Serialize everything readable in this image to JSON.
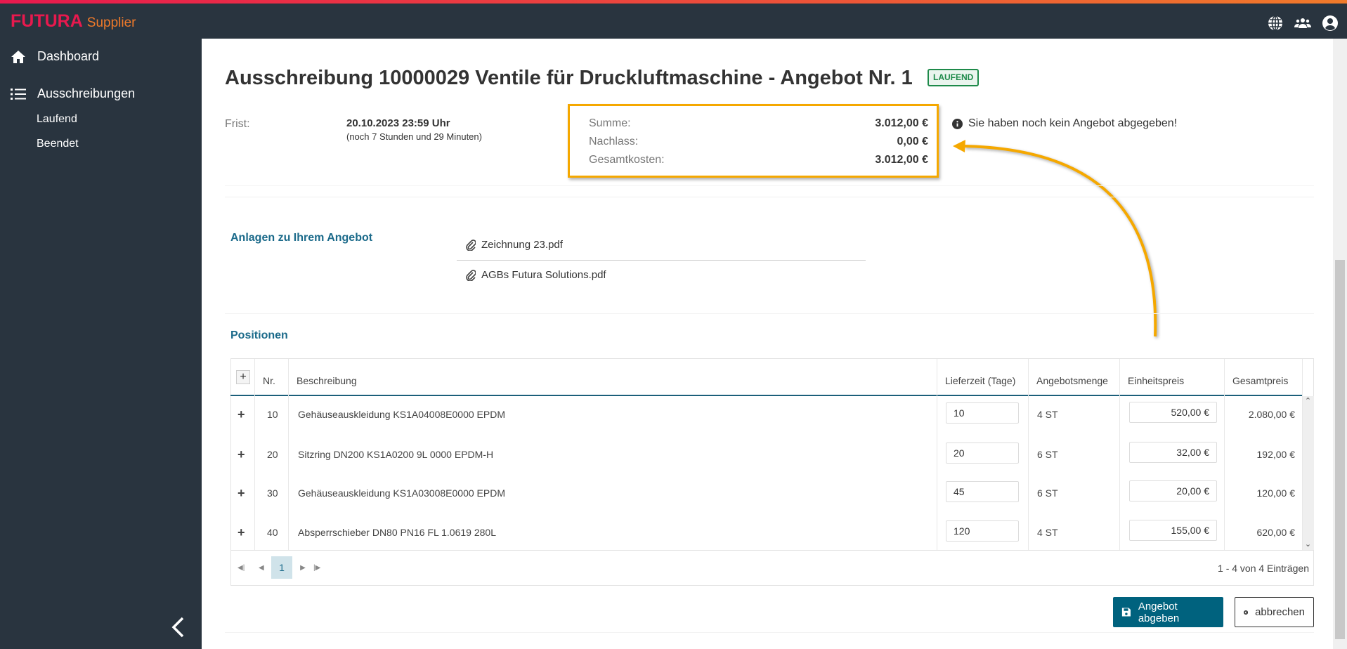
{
  "app": {
    "brand": "FUTURA",
    "product": "Supplier"
  },
  "header": {
    "icons": [
      "globe-icon",
      "users-icon",
      "account-icon"
    ]
  },
  "sidebar": {
    "items": [
      {
        "label": "Dashboard",
        "icon": "home-icon"
      },
      {
        "label": "Ausschreibungen",
        "icon": "list-icon",
        "children": [
          {
            "label": "Laufend"
          },
          {
            "label": "Beendet"
          }
        ]
      }
    ],
    "collapse_icon": "chevron-left-icon"
  },
  "page": {
    "title": "Ausschreibung 10000029 Ventile für Druckluftmaschine - Angebot Nr. 1",
    "status": "LAUFEND",
    "status_color": "#1e8a4a"
  },
  "deadline": {
    "label": "Frist:",
    "value": "20.10.2023 23:59 Uhr",
    "remaining": "(noch 7 Stunden und 29 Minuten)"
  },
  "summary": {
    "sum_label": "Summe:",
    "sum": "3.012,00 €",
    "discount_label": "Nachlass:",
    "discount": "0,00 €",
    "total_label": "Gesamtkosten:",
    "total": "3.012,00 €",
    "highlight_color": "#f5a800"
  },
  "info": "Sie haben noch kein Angebot abgegeben!",
  "attachments": {
    "heading": "Anlagen zu Ihrem Angebot",
    "files": [
      "Zeichnung 23.pdf",
      "AGBs Futura Solutions.pdf"
    ]
  },
  "positions": {
    "heading": "Positionen",
    "columns": [
      "Nr.",
      "Beschreibung",
      "Lieferzeit (Tage)",
      "Angebotsmenge",
      "Einheitspreis",
      "Gesamtpreis"
    ],
    "rows": [
      {
        "nr": "10",
        "desc": "Gehäuseauskleidung KS1A04008E0000 EPDM",
        "lead": "10",
        "qty": "4 ST",
        "unit": "520,00 €",
        "total": "2.080,00 €"
      },
      {
        "nr": "20",
        "desc": "Sitzring DN200 KS1A0200 9L 0000 EPDM-H",
        "lead": "20",
        "qty": "6 ST",
        "unit": "32,00 €",
        "total": "192,00 €"
      },
      {
        "nr": "30",
        "desc": "Gehäuseauskleidung KS1A03008E0000 EPDM",
        "lead": "45",
        "qty": "6 ST",
        "unit": "20,00 €",
        "total": "120,00 €"
      },
      {
        "nr": "40",
        "desc": "Absperrschieber DN80 PN16 FL 1.0619 280L",
        "lead": "120",
        "qty": "4 ST",
        "unit": "155,00 €",
        "total": "620,00 €"
      }
    ],
    "pager": {
      "page": "1",
      "summary": "1 - 4 von 4 Einträgen"
    }
  },
  "actions": {
    "submit": "Angebot abgeben",
    "cancel": "abbrechen",
    "primary_color": "#00627e"
  }
}
